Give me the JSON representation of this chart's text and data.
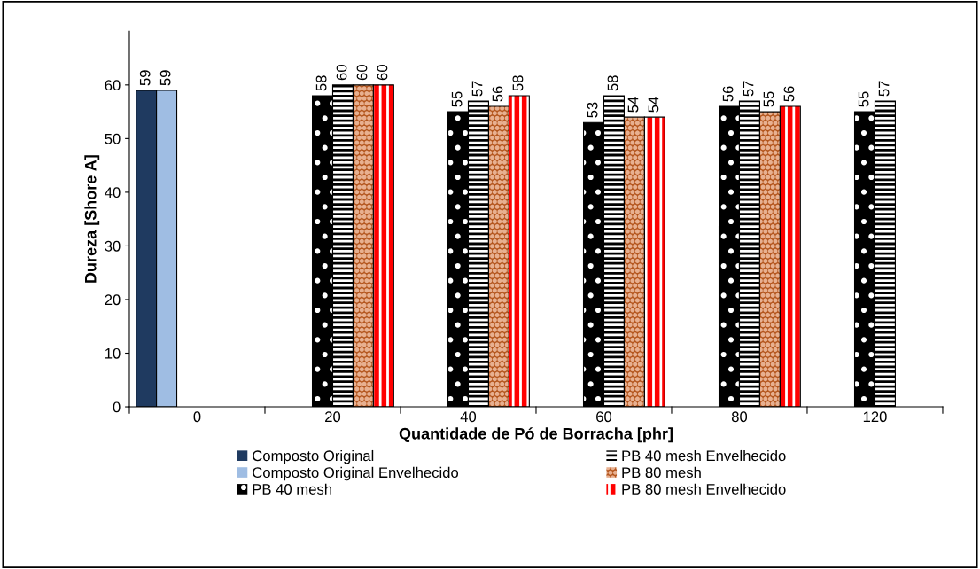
{
  "chart_data": {
    "type": "bar",
    "xlabel": "Quantidade de Pó de Borracha [phr]",
    "ylabel": "Dureza [Shore A]",
    "categories": [
      "0",
      "20",
      "40",
      "60",
      "80",
      "120"
    ],
    "series": [
      {
        "name": "Composto Original",
        "color": "#1f3a60",
        "values": [
          59,
          null,
          null,
          null,
          null,
          null
        ]
      },
      {
        "name": "Composto Original Envelhecido",
        "color": "#9fbde3",
        "values": [
          59,
          null,
          null,
          null,
          null,
          null
        ]
      },
      {
        "name": "PB 40 mesh",
        "color": "#000000",
        "values": [
          null,
          58,
          55,
          53,
          56,
          55
        ]
      },
      {
        "name": "PB 40 mesh Envelhecido",
        "color": "#ffffff",
        "values": [
          null,
          60,
          57,
          58,
          57,
          57
        ]
      },
      {
        "name": "PB 80 mesh",
        "color": "#b4561e",
        "values": [
          null,
          60,
          56,
          54,
          55,
          null
        ]
      },
      {
        "name": "PB 80 mesh Envelhecido",
        "color": "#ff0000",
        "values": [
          null,
          60,
          58,
          54,
          56,
          null
        ]
      }
    ],
    "ylim": [
      0,
      70
    ],
    "yticks": [
      0,
      10,
      20,
      30,
      40,
      50,
      60
    ],
    "grid": false,
    "legend": "bottom",
    "data_labels": true
  }
}
